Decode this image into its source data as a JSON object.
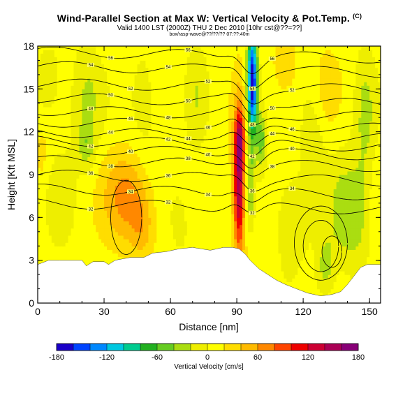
{
  "header": {
    "title": "Wind-Parallel Section at Max W: Vertical Velocity & Pot.Temp.",
    "copyright": "(C)",
    "valid_line": "Valid 1400 LST (2000Z) THU 2 Dec 2010 [10hr cst@??=??]",
    "info_line": "box/rasp-wave@??/??/?? 07:??:40m"
  },
  "colors": {
    "terrain": "#ffffff",
    "contour": "#000000",
    "scale": [
      "#1a00c8",
      "#0044ff",
      "#0088ff",
      "#00c8e0",
      "#00cc90",
      "#22b020",
      "#66cc22",
      "#aadd11",
      "#eeee00",
      "#ffff00",
      "#ffdd00",
      "#ffbb00",
      "#ff8800",
      "#ff4400",
      "#ee0000",
      "#cc0033",
      "#aa0055",
      "#880077"
    ]
  },
  "chart_data": {
    "type": "heatmap",
    "title": "Wind-Parallel Section at Max W: Vertical Velocity & Pot.Temp.",
    "xlabel": "Distance [nm]",
    "ylabel": "Height [Kft MSL]",
    "xlim": [
      0,
      155
    ],
    "ylim": [
      0,
      18
    ],
    "xticks": [
      "0",
      "30",
      "60",
      "90",
      "120",
      "150"
    ],
    "yticks": [
      "0",
      "3",
      "6",
      "9",
      "12",
      "15",
      "18"
    ],
    "colorbar": {
      "label": "Vertical Velocity [cm/s]",
      "min": -180,
      "max": 180,
      "step": 20,
      "tick_labels": [
        "-180",
        "-120",
        "-60",
        "0",
        "60",
        "120",
        "180"
      ]
    },
    "terrain_profile": [
      [
        0,
        2.7
      ],
      [
        5,
        3.0
      ],
      [
        10,
        3.0
      ],
      [
        20,
        3.0
      ],
      [
        22,
        2.6
      ],
      [
        25,
        2.9
      ],
      [
        30,
        2.9
      ],
      [
        32,
        2.7
      ],
      [
        35,
        3.0
      ],
      [
        42,
        3.2
      ],
      [
        48,
        3.2
      ],
      [
        52,
        3.5
      ],
      [
        58,
        3.6
      ],
      [
        64,
        3.8
      ],
      [
        70,
        3.9
      ],
      [
        78,
        3.7
      ],
      [
        84,
        3.9
      ],
      [
        88,
        3.9
      ],
      [
        91,
        3.8
      ],
      [
        94,
        3.4
      ],
      [
        96,
        3.0
      ],
      [
        98,
        2.7
      ],
      [
        100,
        2.4
      ],
      [
        104,
        2.0
      ],
      [
        108,
        1.6
      ],
      [
        112,
        1.3
      ],
      [
        117,
        1.0
      ],
      [
        122,
        0.7
      ],
      [
        128,
        0.5
      ],
      [
        133,
        0.6
      ],
      [
        137,
        0.8
      ],
      [
        140,
        1.3
      ],
      [
        143,
        1.9
      ],
      [
        146,
        2.5
      ],
      [
        149,
        2.7
      ],
      [
        155,
        2.7
      ]
    ],
    "velocity_features": [
      {
        "x": 91,
        "y": 8.5,
        "sx": 1.8,
        "sy": 3.5,
        "w": 150
      },
      {
        "x": 91.5,
        "y": 11.5,
        "sx": 1.6,
        "sy": 1.2,
        "w": 60
      },
      {
        "x": 97,
        "y": 15.5,
        "sx": 1.6,
        "sy": 2.5,
        "w": -200
      },
      {
        "x": 101,
        "y": 11.5,
        "sx": 1.8,
        "sy": 1.5,
        "w": -60
      },
      {
        "x": 96,
        "y": 8.5,
        "sx": 1.4,
        "sy": 2.0,
        "w": -50
      },
      {
        "x": 40,
        "y": 7.5,
        "sx": 7,
        "sy": 2.2,
        "w": 55
      },
      {
        "x": 47,
        "y": 5.5,
        "sx": 4,
        "sy": 1.6,
        "w": 35
      },
      {
        "x": 10,
        "y": 7.0,
        "sx": 5,
        "sy": 3.0,
        "w": -18
      },
      {
        "x": 5,
        "y": 15.5,
        "sx": 5,
        "sy": 2.0,
        "w": -25
      },
      {
        "x": 22,
        "y": 14.0,
        "sx": 5,
        "sy": 3.0,
        "w": -35
      },
      {
        "x": 22,
        "y": 11.0,
        "sx": 2.5,
        "sy": 1.0,
        "w": -30
      },
      {
        "x": 48,
        "y": 14.0,
        "sx": 5,
        "sy": 3.0,
        "w": -25
      },
      {
        "x": 65,
        "y": 6.0,
        "sx": 5,
        "sy": 2.5,
        "w": -18
      },
      {
        "x": 72,
        "y": 14.5,
        "sx": 3.5,
        "sy": 3.0,
        "w": -25
      },
      {
        "x": 115,
        "y": 6.0,
        "sx": 6,
        "sy": 2.5,
        "w": -30
      },
      {
        "x": 138,
        "y": 6.5,
        "sx": 5,
        "sy": 3.0,
        "w": -35
      },
      {
        "x": 145,
        "y": 6.0,
        "sx": 4,
        "sy": 2.5,
        "w": -30
      },
      {
        "x": 125,
        "y": 12.0,
        "sx": 4,
        "sy": 3.0,
        "w": -25
      },
      {
        "x": 148,
        "y": 13.0,
        "sx": 3.5,
        "sy": 3.5,
        "w": -35
      },
      {
        "x": 130,
        "y": 15.0,
        "sx": 4,
        "sy": 2.0,
        "w": 20
      },
      {
        "x": 112,
        "y": 16.5,
        "sx": 4,
        "sy": 1.5,
        "w": 25
      },
      {
        "x": 2,
        "y": 10.5,
        "sx": 2.0,
        "sy": 1.5,
        "w": 18
      },
      {
        "x": 130,
        "y": 2.5,
        "sx": 3,
        "sy": 1.5,
        "w": -40
      }
    ],
    "isentropes": [
      {
        "base": 9.0,
        "label": "36"
      },
      {
        "base": 10.0,
        "label": "38"
      },
      {
        "base": 10.8,
        "label": "40"
      },
      {
        "base": 11.4,
        "label": "42"
      },
      {
        "base": 12.0,
        "label": "44"
      },
      {
        "base": 12.7,
        "label": "46"
      },
      {
        "base": 13.5,
        "label": "48"
      },
      {
        "base": 14.4,
        "label": "50"
      },
      {
        "base": 15.4,
        "label": "52"
      },
      {
        "base": 16.6,
        "label": "54"
      },
      {
        "base": 17.6,
        "label": "56"
      }
    ],
    "lower_isentropes": [
      {
        "base": 8.0,
        "label": "34"
      },
      {
        "base": 7.0,
        "label": "32"
      }
    ]
  }
}
